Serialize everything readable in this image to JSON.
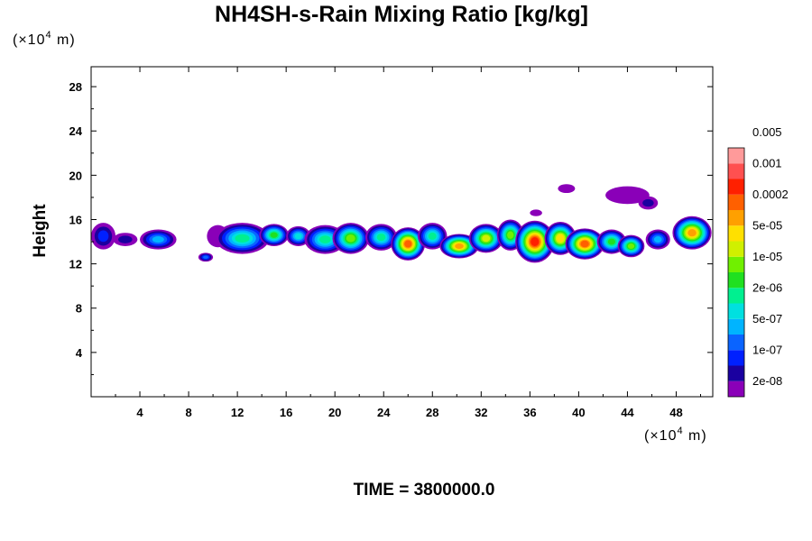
{
  "chart_data": {
    "type": "heatmap",
    "title": "NH4SH-s-Rain Mixing Ratio [kg/kg]",
    "ylabel": "Height",
    "y_unit": {
      "pre": "(×10",
      "exp": "4",
      "post": " m)"
    },
    "x_unit": {
      "pre": "(×10",
      "exp": "4",
      "post": " m)"
    },
    "xlim": [
      0,
      51
    ],
    "ylim": [
      0,
      29.8
    ],
    "x_ticks": [
      4,
      8,
      12,
      16,
      20,
      24,
      28,
      32,
      36,
      40,
      44,
      48
    ],
    "y_ticks": [
      4,
      8,
      12,
      16,
      20,
      24,
      28
    ],
    "footer": "TIME = 3800000.0",
    "colorbar": {
      "colors": [
        "#8a00b8",
        "#1a00a0",
        "#0020ff",
        "#0a64ff",
        "#00b4ff",
        "#00e0e0",
        "#00f090",
        "#20e020",
        "#70f000",
        "#d0f000",
        "#ffe000",
        "#ffa000",
        "#ff6000",
        "#ff2000",
        "#ff5050",
        "#ff9a9a"
      ],
      "labels": [
        "2e-08",
        "1e-07",
        "5e-07",
        "2e-06",
        "1e-05",
        "5e-05",
        "0.0002",
        "0.001",
        "0.005"
      ]
    },
    "cloud_cells": [
      {
        "x": 1.0,
        "y": 14.5,
        "rx": 1.0,
        "ry": 1.2,
        "level": 2
      },
      {
        "x": 2.8,
        "y": 14.2,
        "rx": 1.0,
        "ry": 0.6,
        "level": 1
      },
      {
        "x": 5.5,
        "y": 14.2,
        "rx": 1.5,
        "ry": 0.9,
        "level": 4
      },
      {
        "x": 9.4,
        "y": 12.6,
        "rx": 0.6,
        "ry": 0.4,
        "level": 3
      },
      {
        "x": 10.4,
        "y": 14.5,
        "rx": 0.9,
        "ry": 1.0,
        "level": 0
      },
      {
        "x": 12.4,
        "y": 14.3,
        "rx": 2.2,
        "ry": 1.4,
        "level": 6
      },
      {
        "x": 15.0,
        "y": 14.6,
        "rx": 1.2,
        "ry": 1.0,
        "level": 7
      },
      {
        "x": 17.0,
        "y": 14.5,
        "rx": 1.0,
        "ry": 0.9,
        "level": 5
      },
      {
        "x": 19.2,
        "y": 14.2,
        "rx": 1.7,
        "ry": 1.3,
        "level": 6
      },
      {
        "x": 21.3,
        "y": 14.3,
        "rx": 1.5,
        "ry": 1.4,
        "level": 8
      },
      {
        "x": 23.8,
        "y": 14.4,
        "rx": 1.3,
        "ry": 1.2,
        "level": 6
      },
      {
        "x": 26.0,
        "y": 13.8,
        "rx": 1.4,
        "ry": 1.5,
        "level": 12
      },
      {
        "x": 28.0,
        "y": 14.5,
        "rx": 1.2,
        "ry": 1.2,
        "level": 6
      },
      {
        "x": 30.2,
        "y": 13.6,
        "rx": 1.6,
        "ry": 1.1,
        "level": 11
      },
      {
        "x": 32.4,
        "y": 14.3,
        "rx": 1.4,
        "ry": 1.3,
        "level": 9
      },
      {
        "x": 34.4,
        "y": 14.6,
        "rx": 1.1,
        "ry": 1.4,
        "level": 8
      },
      {
        "x": 36.4,
        "y": 14.0,
        "rx": 1.6,
        "ry": 1.9,
        "level": 13
      },
      {
        "x": 38.5,
        "y": 14.3,
        "rx": 1.3,
        "ry": 1.5,
        "level": 10
      },
      {
        "x": 40.5,
        "y": 13.8,
        "rx": 1.6,
        "ry": 1.4,
        "level": 12
      },
      {
        "x": 42.7,
        "y": 14.0,
        "rx": 1.2,
        "ry": 1.1,
        "level": 7
      },
      {
        "x": 44.3,
        "y": 13.6,
        "rx": 1.1,
        "ry": 1.0,
        "level": 8
      },
      {
        "x": 46.5,
        "y": 14.2,
        "rx": 1.0,
        "ry": 0.9,
        "level": 4
      },
      {
        "x": 49.3,
        "y": 14.8,
        "rx": 1.6,
        "ry": 1.5,
        "level": 11
      },
      {
        "x": 44.0,
        "y": 18.2,
        "rx": 1.8,
        "ry": 0.8,
        "level": 0
      },
      {
        "x": 45.7,
        "y": 17.5,
        "rx": 0.8,
        "ry": 0.6,
        "level": 1
      },
      {
        "x": 39.0,
        "y": 18.8,
        "rx": 0.7,
        "ry": 0.4,
        "level": 0
      },
      {
        "x": 36.5,
        "y": 16.6,
        "rx": 0.5,
        "ry": 0.3,
        "level": 0
      }
    ]
  }
}
